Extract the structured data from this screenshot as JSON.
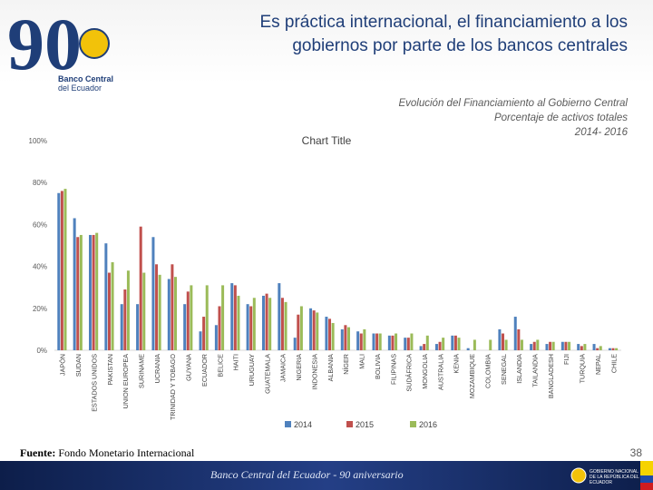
{
  "header": {
    "title_line1": "Es práctica internacional, el financiamiento a los",
    "title_line2": "gobiernos por parte de los bancos centrales"
  },
  "logo": {
    "number": "90",
    "name_line1": "Banco Central",
    "name_line2": "del Ecuador"
  },
  "subtitle": {
    "line1": "Evolución del Financiamiento al Gobierno Central",
    "line2": "Porcentaje de activos totales",
    "line3": "2014- 2016"
  },
  "source": {
    "label": "Fuente:",
    "text": "Fondo Monetario Internacional"
  },
  "page_number": "38",
  "footer": {
    "text": "Banco Central del Ecuador - 90 aniversario",
    "label": "GOBIERNO NACIONAL DE LA REPÚBLICA DEL ECUADOR"
  },
  "colors": {
    "s2014": "#4f81bd",
    "s2015": "#c0504d",
    "s2016": "#9bbb59",
    "title": "#1f3e78"
  },
  "chart_data": {
    "type": "bar",
    "title": "Chart Title",
    "ylim": [
      0,
      100
    ],
    "yticks": [
      "0%",
      "20%",
      "40%",
      "60%",
      "80%",
      "100%"
    ],
    "grid": false,
    "legend_position": "bottom",
    "categories": [
      "JAPÓN",
      "SUDAN",
      "ESTADOS UNIDOS",
      "PAKISTAN",
      "UNION EUROPEA",
      "SURINAME",
      "UCRANIA",
      "TRINIDAD Y TOBAGO",
      "GUYANA",
      "ECUADOR",
      "BELICE",
      "HAITI",
      "URUGUAY",
      "GUATEMALA",
      "JAMAICA",
      "NIGERIA",
      "INDONESIA",
      "ALBANIA",
      "NÍGER",
      "MALI",
      "BOLIVIA",
      "FILIPINAS",
      "SUDÁFRICA",
      "MONGOLIA",
      "AUSTRALIA",
      "KENIA",
      "MOZAMBIQUE",
      "COLOMBIA",
      "SENEGAL",
      "ISLANDIA",
      "TAILANDIA",
      "BANGLADESH",
      "FIJI",
      "TURQUIA",
      "NEPAL",
      "CHILE"
    ],
    "series": [
      {
        "name": "2014",
        "values": [
          75,
          63,
          55,
          51,
          22,
          22,
          54,
          34,
          22,
          9,
          12,
          32,
          22,
          26,
          32,
          6,
          20,
          16,
          10,
          9,
          8,
          7,
          6,
          2,
          3,
          7,
          1,
          0,
          10,
          16,
          3,
          3,
          4,
          3,
          3,
          1
        ]
      },
      {
        "name": "2015",
        "values": [
          76,
          54,
          55,
          37,
          29,
          59,
          41,
          41,
          28,
          16,
          21,
          31,
          21,
          27,
          25,
          17,
          19,
          15,
          12,
          8,
          8,
          7,
          6,
          3,
          4,
          7,
          0,
          0,
          8,
          10,
          4,
          4,
          4,
          2,
          1,
          1
        ]
      },
      {
        "name": "2016",
        "values": [
          77,
          55,
          56,
          42,
          38,
          37,
          36,
          35,
          31,
          31,
          31,
          26,
          25,
          25,
          23,
          21,
          18,
          13,
          11,
          10,
          8,
          8,
          8,
          7,
          6,
          6,
          5,
          5,
          5,
          5,
          5,
          4,
          4,
          3,
          2,
          1
        ]
      }
    ]
  }
}
